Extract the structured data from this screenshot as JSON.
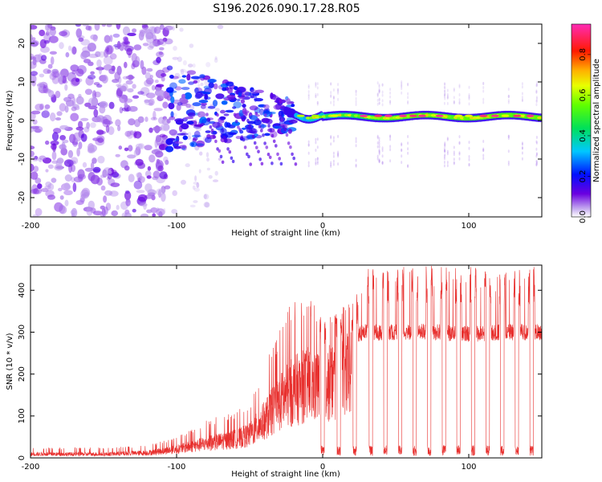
{
  "title": "S196.2026.090.17.28.R05",
  "colors": {
    "snr_line": "#e8302e",
    "axis": "#000000",
    "background": "#ffffff"
  },
  "chart_data": [
    {
      "type": "heatmap",
      "title": "S196.2026.090.17.28.R05",
      "xlabel": "Height of straight line (km)",
      "ylabel": "Frequency (Hz)",
      "xlim": [
        -200,
        150
      ],
      "ylim": [
        -25,
        25
      ],
      "xticks": [
        -200,
        -100,
        0,
        100
      ],
      "yticks": [
        -20,
        -10,
        0,
        10,
        20
      ],
      "xtick_labels": [
        "-200",
        "-100",
        "0",
        "100"
      ],
      "ytick_labels": [
        "-20",
        "-10",
        "0",
        "10",
        "20"
      ],
      "colorbar": {
        "label": "Normalized spectral amplitude",
        "range": [
          0,
          0.95
        ],
        "ticks": [
          0.0,
          0.2,
          0.4,
          0.6,
          0.8
        ],
        "tick_labels": [
          "0.0",
          "0.2",
          "0.4",
          "0.6",
          "0.8"
        ],
        "colormap": "rainbow (purple → blue → cyan → green → yellow → red → magenta)"
      },
      "features": [
        {
          "region": "noise",
          "x_range": [
            -200,
            -105
          ],
          "freq_range": [
            -25,
            25
          ],
          "amplitude": "0.0–0.1"
        },
        {
          "region": "transition",
          "x_range": [
            -105,
            -20
          ],
          "freq_range": [
            -13,
            10
          ],
          "amplitude": "0.05–0.3"
        },
        {
          "region": "carrier line",
          "x_range": [
            -20,
            150
          ],
          "freq_center": 1,
          "freq_halfwidth": 2,
          "amplitude": "0.3–0.95"
        }
      ]
    },
    {
      "type": "line",
      "xlabel": "Height of straight line (km)",
      "ylabel": "SNR (10 * v/v)",
      "xlim": [
        -200,
        150
      ],
      "ylim": [
        0,
        460
      ],
      "xticks": [
        -200,
        -100,
        0,
        100
      ],
      "yticks": [
        0,
        100,
        200,
        300,
        400
      ],
      "xtick_labels": [
        "-200",
        "-100",
        "0",
        "100"
      ],
      "ytick_labels": [
        "0",
        "100",
        "200",
        "300",
        "400"
      ],
      "series": [
        {
          "name": "SNR",
          "x": [
            -200,
            -150,
            -120,
            -100,
            -80,
            -60,
            -50,
            -40,
            -30,
            -20,
            -10,
            0,
            10,
            20,
            30,
            40,
            60,
            80,
            100,
            120,
            150
          ],
          "y": [
            10,
            10,
            15,
            25,
            40,
            55,
            70,
            110,
            170,
            200,
            230,
            240,
            270,
            290,
            300,
            300,
            300,
            300,
            295,
            300,
            300
          ],
          "envelope_max": [
            25,
            25,
            30,
            50,
            90,
            110,
            130,
            220,
            300,
            390,
            390,
            330,
            360,
            370,
            450,
            460,
            455,
            460,
            460,
            440,
            460
          ],
          "dropouts_x": [
            0,
            11,
            22,
            33,
            43,
            53,
            63,
            73,
            83,
            93,
            103,
            113,
            123,
            133,
            143
          ],
          "dropout_min": 5
        }
      ]
    }
  ]
}
